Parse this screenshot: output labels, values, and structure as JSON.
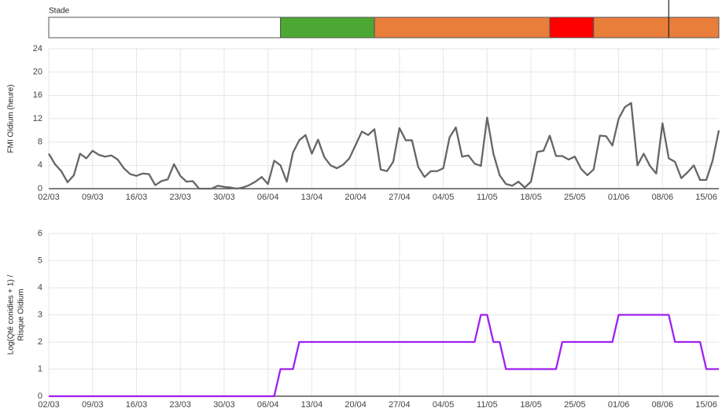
{
  "stage": {
    "title": "Stade",
    "marker": 99,
    "segments": [
      {
        "color": "#ffffff",
        "start": 0,
        "end": 37
      },
      {
        "color": "#4ca832",
        "start": 37,
        "end": 52
      },
      {
        "color": "#e97d3a",
        "start": 52,
        "end": 80
      },
      {
        "color": "#ff0000",
        "start": 80,
        "end": 87
      },
      {
        "color": "#e97d3a",
        "start": 87,
        "end": 107
      }
    ]
  },
  "chart_data": [
    {
      "type": "line",
      "ylabel": [
        "FMI Oïdium (heure)"
      ],
      "ylim": [
        0,
        24
      ],
      "yticks": [
        0,
        4,
        8,
        12,
        16,
        20,
        24
      ],
      "grid": true,
      "categories": [
        "02/03",
        null,
        null,
        null,
        null,
        null,
        null,
        "09/03",
        null,
        null,
        null,
        null,
        null,
        null,
        "16/03",
        null,
        null,
        null,
        null,
        null,
        null,
        "23/03",
        null,
        null,
        null,
        null,
        null,
        null,
        "30/03",
        null,
        null,
        null,
        null,
        null,
        null,
        "06/04",
        null,
        null,
        null,
        null,
        null,
        null,
        "13/04",
        null,
        null,
        null,
        null,
        null,
        null,
        "20/04",
        null,
        null,
        null,
        null,
        null,
        null,
        "27/04",
        null,
        null,
        null,
        null,
        null,
        null,
        "04/05",
        null,
        null,
        null,
        null,
        null,
        null,
        "11/05",
        null,
        null,
        null,
        null,
        null,
        null,
        "18/05",
        null,
        null,
        null,
        null,
        null,
        null,
        "25/05",
        null,
        null,
        null,
        null,
        null,
        null,
        "01/06",
        null,
        null,
        null,
        null,
        null,
        null,
        "08/06",
        null,
        null,
        null,
        null,
        null,
        null,
        "15/06",
        null,
        null
      ],
      "series": [
        {
          "color": "#666666",
          "values": [
            6,
            4.2,
            3,
            1.1,
            2.3,
            6,
            5.2,
            6.5,
            5.8,
            5.5,
            5.7,
            5,
            3.5,
            2.5,
            2.2,
            2.6,
            2.5,
            0.6,
            1.3,
            1.6,
            4.2,
            2.2,
            1.2,
            1.3,
            0,
            0,
            0,
            0.5,
            0.3,
            0.2,
            0,
            0.2,
            0.6,
            1.2,
            2,
            0.8,
            4.8,
            4,
            1.2,
            6.2,
            8.3,
            9.2,
            6,
            8.4,
            5.4,
            4,
            3.5,
            4.1,
            5.2,
            7.5,
            9.8,
            9.2,
            10.2,
            3.3,
            3,
            4.6,
            10.4,
            8.3,
            8.3,
            3.7,
            2,
            3,
            3,
            3.5,
            8.8,
            10.5,
            5.5,
            5.7,
            4.3,
            3.9,
            12.2,
            6,
            2.3,
            0.8,
            0.5,
            1.2,
            0.2,
            1.2,
            6.3,
            6.5,
            9.1,
            5.6,
            5.6,
            5,
            5.5,
            3.4,
            2.3,
            3.3,
            9.1,
            9,
            7.4,
            12,
            14,
            14.7,
            4,
            6,
            3.9,
            2.6,
            11.2,
            5.2,
            4.6,
            1.8,
            2.8,
            4,
            1.5,
            1.5,
            4.8,
            10
          ]
        }
      ]
    },
    {
      "type": "line",
      "ylabel": [
        "Log(Qté conidies + 1) /",
        "Risque Oïdium"
      ],
      "ylim": [
        0,
        6
      ],
      "yticks": [
        0,
        1,
        2,
        3,
        4,
        5,
        6
      ],
      "grid": true,
      "categories": [
        "02/03",
        null,
        null,
        null,
        null,
        null,
        null,
        "09/03",
        null,
        null,
        null,
        null,
        null,
        null,
        "16/03",
        null,
        null,
        null,
        null,
        null,
        null,
        "23/03",
        null,
        null,
        null,
        null,
        null,
        null,
        "30/03",
        null,
        null,
        null,
        null,
        null,
        null,
        "06/04",
        null,
        null,
        null,
        null,
        null,
        null,
        "13/04",
        null,
        null,
        null,
        null,
        null,
        null,
        "20/04",
        null,
        null,
        null,
        null,
        null,
        null,
        "27/04",
        null,
        null,
        null,
        null,
        null,
        null,
        "04/05",
        null,
        null,
        null,
        null,
        null,
        null,
        "11/05",
        null,
        null,
        null,
        null,
        null,
        null,
        "18/05",
        null,
        null,
        null,
        null,
        null,
        null,
        "25/05",
        null,
        null,
        null,
        null,
        null,
        null,
        "01/06",
        null,
        null,
        null,
        null,
        null,
        null,
        "08/06",
        null,
        null,
        null,
        null,
        null,
        null,
        "15/06",
        null,
        null
      ],
      "series": [
        {
          "color": "#a020f0",
          "values": [
            0,
            0,
            0,
            0,
            0,
            0,
            0,
            0,
            0,
            0,
            0,
            0,
            0,
            0,
            0,
            0,
            0,
            0,
            0,
            0,
            0,
            0,
            0,
            0,
            0,
            0,
            0,
            0,
            0,
            0,
            0,
            0,
            0,
            0,
            0,
            0,
            0,
            1,
            1,
            1,
            2,
            2,
            2,
            2,
            2,
            2,
            2,
            2,
            2,
            2,
            2,
            2,
            2,
            2,
            2,
            2,
            2,
            2,
            2,
            2,
            2,
            2,
            2,
            2,
            2,
            2,
            2,
            2,
            2,
            3,
            3,
            2,
            2,
            1,
            1,
            1,
            1,
            1,
            1,
            1,
            1,
            1,
            2,
            2,
            2,
            2,
            2,
            2,
            2,
            2,
            2,
            3,
            3,
            3,
            3,
            3,
            3,
            3,
            3,
            3,
            2,
            2,
            2,
            2,
            2,
            1,
            1,
            1
          ]
        }
      ]
    }
  ]
}
